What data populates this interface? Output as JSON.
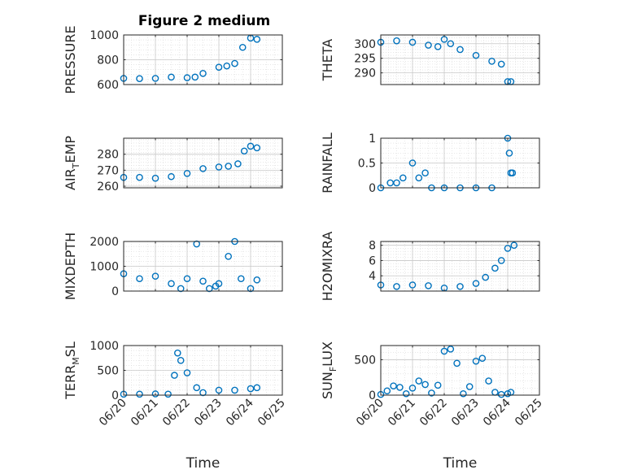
{
  "title": "Figure 2 medium",
  "colors": {
    "marker": "#0072BD",
    "axis": "#262626",
    "grid": "#d9d9d9",
    "background": "#ffffff"
  },
  "chart_data": [
    {
      "type": "scatter",
      "panel": "pressure",
      "ylabel": "PRESSURE",
      "xlabel": "",
      "xlim": [
        "06/20",
        "06/25"
      ],
      "xticks": [
        "06/20",
        "06/21",
        "06/22",
        "06/23",
        "06/24",
        "06/25"
      ],
      "xticklabels_shown": false,
      "ylim": [
        600,
        1000
      ],
      "yticks": [
        600,
        800,
        1000
      ],
      "grid": true,
      "x": [
        "06/20",
        "06/20.5",
        "06/21",
        "06/21.5",
        "06/22",
        "06/22.25",
        "06/22.5",
        "06/23",
        "06/23.25",
        "06/23.5",
        "06/23.75",
        "06/24",
        "06/24.2"
      ],
      "y": [
        650,
        648,
        650,
        660,
        655,
        660,
        690,
        740,
        750,
        770,
        900,
        975,
        965
      ]
    },
    {
      "type": "scatter",
      "panel": "theta",
      "ylabel": "THETA",
      "xlabel": "",
      "xlim": [
        "06/20",
        "06/25"
      ],
      "xticks": [
        "06/20",
        "06/21",
        "06/22",
        "06/23",
        "06/24",
        "06/25"
      ],
      "xticklabels_shown": false,
      "ylim": [
        286,
        303
      ],
      "yticks": [
        290,
        295,
        300
      ],
      "grid": true,
      "x": [
        "06/20",
        "06/20.5",
        "06/21",
        "06/21.5",
        "06/21.8",
        "06/22",
        "06/22.2",
        "06/22.5",
        "06/23",
        "06/23.5",
        "06/23.8",
        "06/24",
        "06/24.1"
      ],
      "y": [
        300.5,
        301,
        300.5,
        299.5,
        299,
        301.5,
        300,
        298,
        296,
        294,
        293,
        287,
        287
      ]
    },
    {
      "type": "scatter",
      "panel": "air_temp",
      "ylabel": "AIR",
      "ylabel_subscript": "T",
      "ylabel_suffix": "EMP",
      "xlabel": "",
      "xlim": [
        "06/20",
        "06/25"
      ],
      "xticks": [
        "06/20",
        "06/21",
        "06/22",
        "06/23",
        "06/24",
        "06/25"
      ],
      "xticklabels_shown": false,
      "ylim": [
        259,
        290
      ],
      "yticks": [
        260,
        270,
        280
      ],
      "grid": true,
      "x": [
        "06/20",
        "06/20.5",
        "06/21",
        "06/21.5",
        "06/22",
        "06/22.5",
        "06/23",
        "06/23.3",
        "06/23.6",
        "06/23.8",
        "06/24",
        "06/24.2"
      ],
      "y": [
        265.5,
        265.5,
        265,
        266,
        268,
        271,
        272,
        272.5,
        274,
        282,
        285,
        284
      ]
    },
    {
      "type": "scatter",
      "panel": "rainfall",
      "ylabel": "RAINFALL",
      "xlabel": "",
      "xlim": [
        "06/20",
        "06/25"
      ],
      "xticks": [
        "06/20",
        "06/21",
        "06/22",
        "06/23",
        "06/24",
        "06/25"
      ],
      "xticklabels_shown": false,
      "ylim": [
        0,
        1
      ],
      "yticks": [
        0,
        0.5,
        1
      ],
      "yticklabels": [
        "0",
        "0.5",
        "1"
      ],
      "grid": true,
      "x": [
        "06/20",
        "06/20.3",
        "06/20.5",
        "06/20.7",
        "06/21",
        "06/21.2",
        "06/21.4",
        "06/21.6",
        "06/22",
        "06/22.5",
        "06/23",
        "06/23.5",
        "06/24",
        "06/24.05",
        "06/24.1",
        "06/24.15"
      ],
      "y": [
        0,
        0.1,
        0.1,
        0.2,
        0.5,
        0.2,
        0.3,
        0,
        0,
        0,
        0,
        0,
        1.0,
        0.7,
        0.3,
        0.3
      ]
    },
    {
      "type": "scatter",
      "panel": "mixdepth",
      "ylabel": "MIXDEPTH",
      "xlabel": "",
      "xlim": [
        "06/20",
        "06/25"
      ],
      "xticks": [
        "06/20",
        "06/21",
        "06/22",
        "06/23",
        "06/24",
        "06/25"
      ],
      "xticklabels_shown": false,
      "ylim": [
        0,
        2000
      ],
      "yticks": [
        0,
        1000,
        2000
      ],
      "grid": true,
      "x": [
        "06/20",
        "06/20.5",
        "06/21",
        "06/21.5",
        "06/21.8",
        "06/22",
        "06/22.3",
        "06/22.5",
        "06/22.7",
        "06/22.9",
        "06/23",
        "06/23.3",
        "06/23.5",
        "06/23.7",
        "06/24",
        "06/24.2"
      ],
      "y": [
        700,
        500,
        600,
        300,
        100,
        500,
        1900,
        400,
        100,
        200,
        300,
        1400,
        2000,
        500,
        100,
        450
      ]
    },
    {
      "type": "scatter",
      "panel": "h2omixra",
      "ylabel": "H2OMIXRA",
      "xlabel": "",
      "xlim": [
        "06/20",
        "06/25"
      ],
      "xticks": [
        "06/20",
        "06/21",
        "06/22",
        "06/23",
        "06/24",
        "06/25"
      ],
      "xticklabels_shown": false,
      "ylim": [
        2,
        8.5
      ],
      "yticks": [
        4,
        6,
        8
      ],
      "grid": true,
      "x": [
        "06/20",
        "06/20.5",
        "06/21",
        "06/21.5",
        "06/22",
        "06/22.5",
        "06/23",
        "06/23.3",
        "06/23.6",
        "06/23.8",
        "06/24",
        "06/24.2"
      ],
      "y": [
        2.8,
        2.6,
        2.8,
        2.7,
        2.4,
        2.6,
        3.0,
        3.8,
        5.0,
        6.0,
        7.6,
        8.0
      ]
    },
    {
      "type": "scatter",
      "panel": "terr_msl",
      "ylabel": "TERR",
      "ylabel_subscript": "M",
      "ylabel_suffix": "SL",
      "xlabel": "Time",
      "xlim": [
        "06/20",
        "06/25"
      ],
      "xticks": [
        "06/20",
        "06/21",
        "06/22",
        "06/23",
        "06/24",
        "06/25"
      ],
      "xticklabels_shown": true,
      "ylim": [
        0,
        1000
      ],
      "yticks": [
        0,
        500,
        1000
      ],
      "grid": true,
      "x": [
        "06/20",
        "06/20.5",
        "06/21",
        "06/21.4",
        "06/21.6",
        "06/21.7",
        "06/21.8",
        "06/22",
        "06/22.3",
        "06/22.5",
        "06/23",
        "06/23.5",
        "06/24",
        "06/24.2"
      ],
      "y": [
        20,
        20,
        25,
        20,
        400,
        850,
        700,
        450,
        150,
        50,
        100,
        100,
        130,
        150
      ]
    },
    {
      "type": "scatter",
      "panel": "sun_flux",
      "ylabel": "SUN",
      "ylabel_subscript": "F",
      "ylabel_suffix": "LUX",
      "xlabel": "Time",
      "xlim": [
        "06/20",
        "06/25"
      ],
      "xticks": [
        "06/20",
        "06/21",
        "06/22",
        "06/23",
        "06/24",
        "06/25"
      ],
      "xticklabels_shown": true,
      "ylim": [
        0,
        700
      ],
      "yticks": [
        0,
        500
      ],
      "grid": true,
      "x": [
        "06/20",
        "06/20.2",
        "06/20.4",
        "06/20.6",
        "06/20.8",
        "06/21",
        "06/21.2",
        "06/21.4",
        "06/21.6",
        "06/21.8",
        "06/22",
        "06/22.2",
        "06/22.4",
        "06/22.6",
        "06/22.8",
        "06/23",
        "06/23.2",
        "06/23.4",
        "06/23.6",
        "06/23.8",
        "06/24",
        "06/24.1"
      ],
      "y": [
        10,
        60,
        130,
        110,
        20,
        100,
        200,
        150,
        30,
        140,
        620,
        650,
        450,
        20,
        120,
        480,
        520,
        200,
        40,
        10,
        20,
        40
      ]
    }
  ]
}
